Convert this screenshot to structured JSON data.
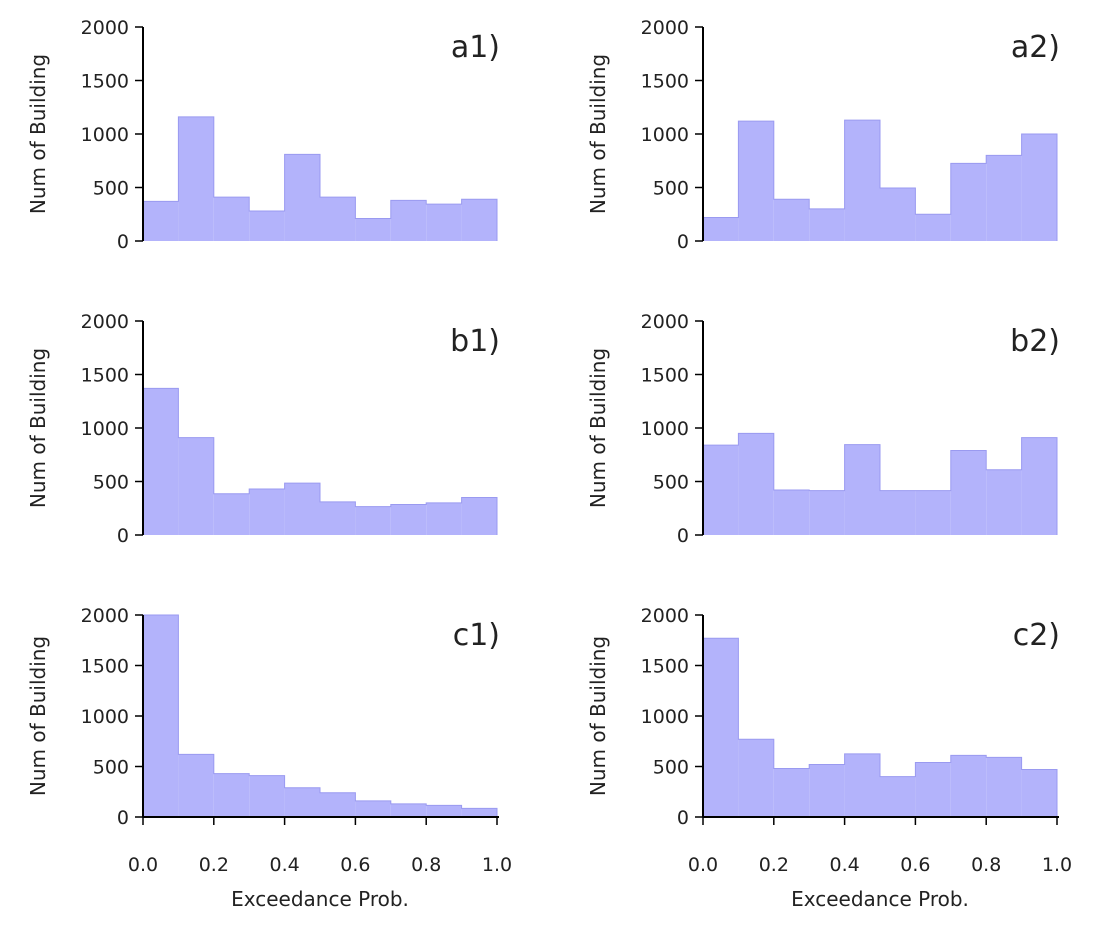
{
  "figure": {
    "accent_color": "#b3b3fb",
    "edge_color": "#9a9af0"
  },
  "chart_data": [
    {
      "type": "bar",
      "panel": "a1)",
      "categories": [
        "0.0-0.1",
        "0.1-0.2",
        "0.2-0.3",
        "0.3-0.4",
        "0.4-0.5",
        "0.5-0.6",
        "0.6-0.7",
        "0.7-0.8",
        "0.8-0.9",
        "0.9-1.0"
      ],
      "values": [
        370,
        1160,
        410,
        280,
        810,
        410,
        210,
        380,
        345,
        390
      ],
      "xlim": [
        0,
        1
      ],
      "ylim": [
        0,
        2000
      ],
      "ylabel": "Num of Building",
      "xlabel": "",
      "yticks": [
        "0",
        "500",
        "1000",
        "1500",
        "2000"
      ],
      "xticks": []
    },
    {
      "type": "bar",
      "panel": "a2)",
      "categories": [
        "0.0-0.1",
        "0.1-0.2",
        "0.2-0.3",
        "0.3-0.4",
        "0.4-0.5",
        "0.5-0.6",
        "0.6-0.7",
        "0.7-0.8",
        "0.8-0.9",
        "0.9-1.0"
      ],
      "values": [
        220,
        1120,
        390,
        300,
        1130,
        495,
        250,
        725,
        800,
        1000
      ],
      "xlim": [
        0,
        1
      ],
      "ylim": [
        0,
        2000
      ],
      "ylabel": "Num of Building",
      "xlabel": "",
      "yticks": [
        "0",
        "500",
        "1000",
        "1500",
        "2000"
      ],
      "xticks": []
    },
    {
      "type": "bar",
      "panel": "b1)",
      "categories": [
        "0.0-0.1",
        "0.1-0.2",
        "0.2-0.3",
        "0.3-0.4",
        "0.4-0.5",
        "0.5-0.6",
        "0.6-0.7",
        "0.7-0.8",
        "0.8-0.9",
        "0.9-1.0"
      ],
      "values": [
        1370,
        910,
        385,
        430,
        485,
        310,
        265,
        285,
        300,
        350
      ],
      "xlim": [
        0,
        1
      ],
      "ylim": [
        0,
        2000
      ],
      "ylabel": "Num of Building",
      "xlabel": "",
      "yticks": [
        "0",
        "500",
        "1000",
        "1500",
        "2000"
      ],
      "xticks": []
    },
    {
      "type": "bar",
      "panel": "b2)",
      "categories": [
        "0.0-0.1",
        "0.1-0.2",
        "0.2-0.3",
        "0.3-0.4",
        "0.4-0.5",
        "0.5-0.6",
        "0.6-0.7",
        "0.7-0.8",
        "0.8-0.9",
        "0.9-1.0"
      ],
      "values": [
        840,
        950,
        420,
        415,
        845,
        415,
        415,
        790,
        610,
        910
      ],
      "xlim": [
        0,
        1
      ],
      "ylim": [
        0,
        2000
      ],
      "ylabel": "Num of Building",
      "xlabel": "",
      "yticks": [
        "0",
        "500",
        "1000",
        "1500",
        "2000"
      ],
      "xticks": []
    },
    {
      "type": "bar",
      "panel": "c1)",
      "categories": [
        "0.0-0.1",
        "0.1-0.2",
        "0.2-0.3",
        "0.3-0.4",
        "0.4-0.5",
        "0.5-0.6",
        "0.6-0.7",
        "0.7-0.8",
        "0.8-0.9",
        "0.9-1.0"
      ],
      "values": [
        2000,
        620,
        430,
        410,
        290,
        240,
        160,
        130,
        115,
        85
      ],
      "xlim": [
        0,
        1
      ],
      "ylim": [
        0,
        2000
      ],
      "ylabel": "Num of Building",
      "xlabel": "Exceedance Prob.",
      "yticks": [
        "0",
        "500",
        "1000",
        "1500",
        "2000"
      ],
      "xticks": [
        "0.0",
        "0.2",
        "0.4",
        "0.6",
        "0.8",
        "1.0"
      ]
    },
    {
      "type": "bar",
      "panel": "c2)",
      "categories": [
        "0.0-0.1",
        "0.1-0.2",
        "0.2-0.3",
        "0.3-0.4",
        "0.4-0.5",
        "0.5-0.6",
        "0.6-0.7",
        "0.7-0.8",
        "0.8-0.9",
        "0.9-1.0"
      ],
      "values": [
        1770,
        770,
        480,
        520,
        625,
        400,
        540,
        610,
        590,
        470
      ],
      "xlim": [
        0,
        1
      ],
      "ylim": [
        0,
        2000
      ],
      "ylabel": "Num of Building",
      "xlabel": "Exceedance Prob.",
      "yticks": [
        "0",
        "500",
        "1000",
        "1500",
        "2000"
      ],
      "xticks": [
        "0.0",
        "0.2",
        "0.4",
        "0.6",
        "0.8",
        "1.0"
      ]
    }
  ]
}
